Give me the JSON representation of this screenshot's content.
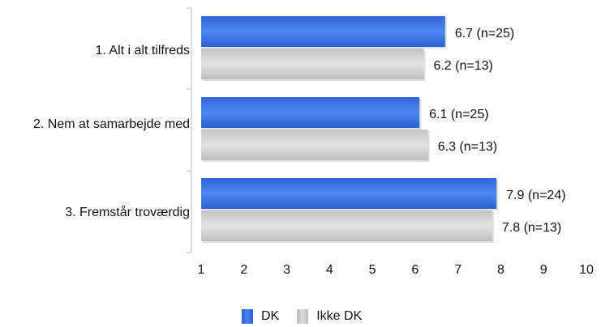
{
  "chart_data": {
    "type": "bar",
    "orientation": "horizontal",
    "categories": [
      "1. Alt i alt tilfreds",
      "2. Nem at samarbejde med",
      "3. Fremstår troværdig"
    ],
    "series": [
      {
        "name": "DK",
        "values": [
          6.7,
          6.1,
          7.9
        ],
        "labels": [
          "6.7 (n=25)",
          "6.1 (n=25)",
          "7.9 (n=24)"
        ],
        "color": "#3a76e6"
      },
      {
        "name": "Ikke DK",
        "values": [
          6.2,
          6.3,
          7.8
        ],
        "labels": [
          "6.2 (n=13)",
          "6.3 (n=13)",
          "7.8 (n=13)"
        ],
        "color": "#cfcfcf"
      }
    ],
    "xlim": [
      1,
      10
    ],
    "x_ticks": [
      "1",
      "2",
      "3",
      "4",
      "5",
      "6",
      "7",
      "8",
      "9",
      "10"
    ],
    "legend_position": "bottom",
    "grid": false
  },
  "legend": {
    "dk": "DK",
    "ikke_dk": "Ikke DK"
  }
}
